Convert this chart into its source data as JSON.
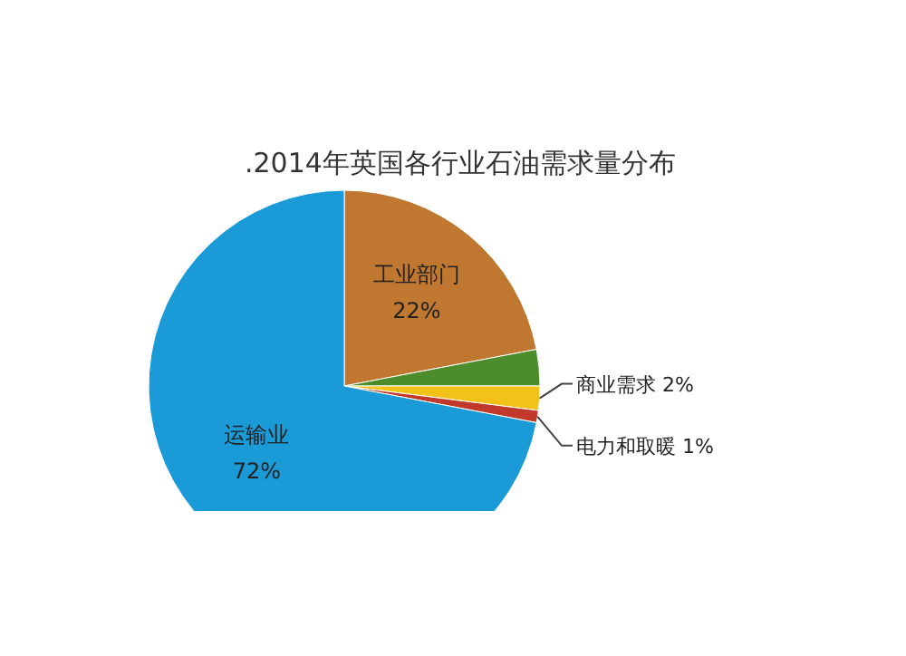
{
  "chart_data": {
    "type": "pie",
    "title": ".2014年英国各行业石油需求量分布",
    "categories": [
      "工业部门",
      null,
      "商业需求",
      "电力和取暖",
      "运输业"
    ],
    "values": [
      22,
      3,
      2,
      1,
      72
    ],
    "colors": [
      "#c0772f",
      "#4c8c2b",
      "#f2c219",
      "#c0392b",
      "#1a9ad6"
    ],
    "value_labels": [
      "22%",
      null,
      "2%",
      "1%",
      "72%"
    ]
  }
}
